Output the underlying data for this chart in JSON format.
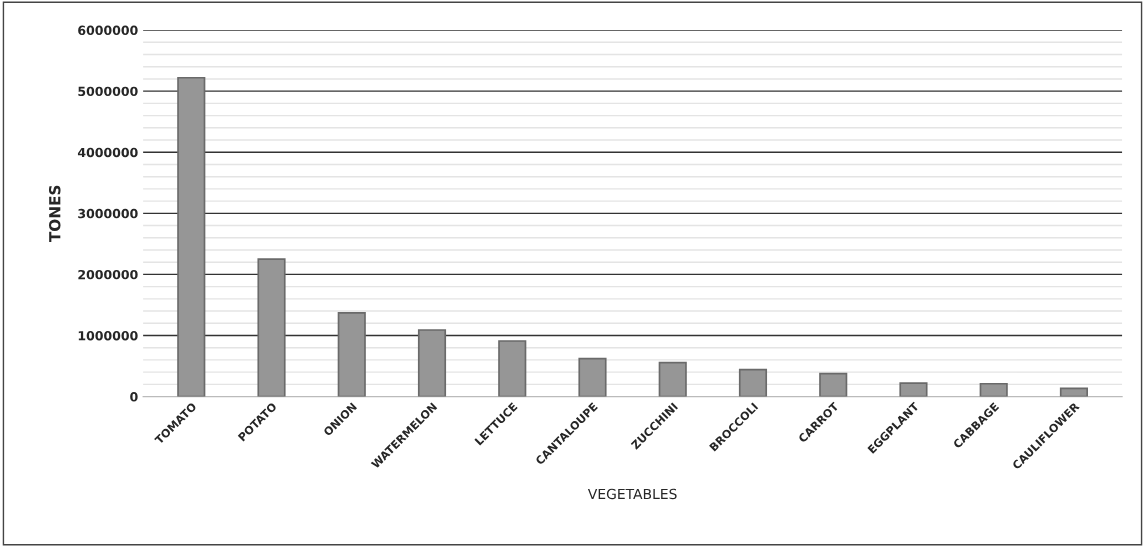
{
  "chart_data": {
    "type": "bar",
    "xlabel": "VEGETABLES",
    "ylabel": "TONES",
    "categories": [
      "TOMATO",
      "POTATO",
      "ONION",
      "WATERMELON",
      "LETTUCE",
      "CANTALOUPE",
      "ZUCCHINI",
      "BROCCOLI",
      "CARROT",
      "EGGPLANT",
      "CABBAGE",
      "CAULIFLOWER"
    ],
    "values": [
      5220000,
      2250000,
      1370000,
      1090000,
      910000,
      620000,
      555000,
      440000,
      375000,
      220000,
      210000,
      135000
    ],
    "color": "#969696",
    "ylim": [
      0,
      6000000
    ],
    "yticks": [
      0,
      {
        "value": 200000,
        "label": null
      },
      {
        "value": 400000,
        "label": null
      },
      {
        "value": 600000,
        "label": null
      },
      {
        "value": 800000,
        "label": null
      },
      1000000,
      {
        "value": 1200000,
        "label": null
      },
      {
        "value": 1400000,
        "label": null
      },
      {
        "value": 1600000,
        "label": null
      },
      {
        "value": 1800000,
        "label": null
      },
      2000000,
      {
        "value": 2200000,
        "label": null
      },
      {
        "value": 2400000,
        "label": null
      },
      {
        "value": 2600000,
        "label": null
      },
      {
        "value": 2800000,
        "label": null
      },
      3000000,
      {
        "value": 3200000,
        "label": null
      },
      {
        "value": 3400000,
        "label": null
      },
      {
        "value": 3600000,
        "label": null
      },
      {
        "value": 3800000,
        "label": null
      },
      4000000,
      {
        "value": 4200000,
        "label": null
      },
      {
        "value": 4400000,
        "label": null
      },
      {
        "value": 4600000,
        "label": null
      },
      {
        "value": 4800000,
        "label": null
      },
      5000000,
      {
        "value": 5200000,
        "label": null
      },
      {
        "value": 5400000,
        "label": null
      },
      {
        "value": 5600000,
        "label": null
      },
      {
        "value": 5800000,
        "label": null
      },
      6000000
    ],
    "grid": "y"
  }
}
